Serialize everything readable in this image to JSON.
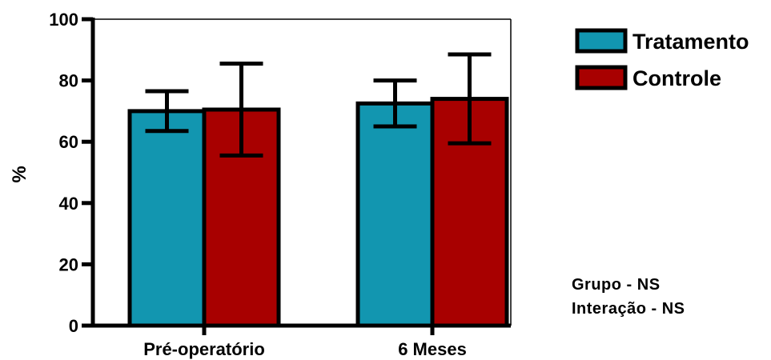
{
  "chart_data": {
    "type": "bar",
    "title": "",
    "xlabel": "",
    "ylabel": "%",
    "ylim": [
      0,
      100
    ],
    "yticks": [
      0,
      20,
      40,
      60,
      80,
      100
    ],
    "grid": false,
    "legend_position": "top-right",
    "categories": [
      "Pré-operatório",
      "6 Meses"
    ],
    "series": [
      {
        "name": "Tratamento",
        "color": "#1296b0",
        "values": [
          70,
          72.5
        ],
        "error": [
          6.5,
          7.5
        ]
      },
      {
        "name": "Controle",
        "color": "#a80000",
        "values": [
          70.5,
          74
        ],
        "error": [
          15,
          14.5
        ]
      }
    ],
    "annotations": [
      "Grupo - NS",
      "Interação - NS"
    ]
  }
}
